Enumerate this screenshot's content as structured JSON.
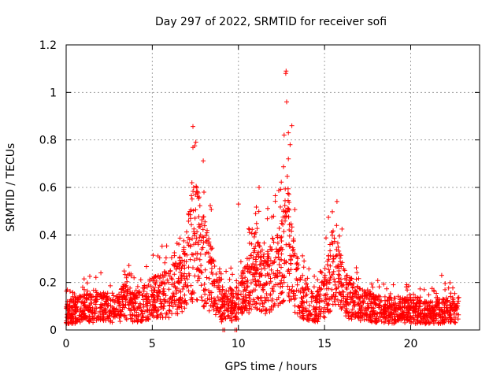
{
  "chart_data": {
    "type": "scatter",
    "title": "Day 297 of 2022, SRMTID for receiver sofi",
    "xlabel": "GPS time / hours",
    "ylabel": "SRMTID / TECUs",
    "xlim": [
      0,
      24
    ],
    "ylim": [
      0,
      1.2
    ],
    "xticks": [
      0,
      5,
      10,
      15,
      20
    ],
    "xtick_labels": [
      "0",
      "5",
      "10",
      "15",
      "20"
    ],
    "yticks": [
      0,
      0.2,
      0.4,
      0.6,
      0.8,
      1.0,
      1.2
    ],
    "ytick_labels": [
      "0",
      "0.2",
      "0.4",
      "0.6",
      "0.8",
      "1",
      "1.2"
    ],
    "grid": true,
    "marker": "+",
    "color": "#ff0000",
    "series": [
      {
        "name": "sofi",
        "profile": {
          "description_units": "hour -> typical SRMTID (TECU)",
          "hours": [
            0,
            1,
            2,
            3,
            3.5,
            4,
            5,
            6,
            6.8,
            7.2,
            7.5,
            8,
            8.5,
            9,
            10,
            10.5,
            11,
            11.5,
            12,
            12.5,
            12.8,
            13,
            13.3,
            13.8,
            14.5,
            15,
            15.5,
            16,
            16.5,
            17,
            18,
            19,
            20,
            21,
            22,
            22.8
          ],
          "values": [
            0.08,
            0.1,
            0.11,
            0.1,
            0.14,
            0.1,
            0.15,
            0.17,
            0.22,
            0.38,
            0.42,
            0.32,
            0.22,
            0.11,
            0.13,
            0.2,
            0.28,
            0.22,
            0.26,
            0.3,
            0.45,
            0.35,
            0.22,
            0.15,
            0.1,
            0.16,
            0.3,
            0.2,
            0.15,
            0.12,
            0.1,
            0.09,
            0.09,
            0.08,
            0.09,
            0.1
          ]
        },
        "peaks": [
          {
            "x": 7.3,
            "y": 0.62
          },
          {
            "x": 7.4,
            "y": 0.6
          },
          {
            "x": 7.5,
            "y": 0.57
          },
          {
            "x": 8.0,
            "y": 0.58
          },
          {
            "x": 10.0,
            "y": 0.53
          },
          {
            "x": 11.2,
            "y": 0.6
          },
          {
            "x": 11.0,
            "y": 0.49
          },
          {
            "x": 12.75,
            "y": 1.08
          },
          {
            "x": 12.77,
            "y": 1.09
          },
          {
            "x": 12.8,
            "y": 0.96
          },
          {
            "x": 12.9,
            "y": 0.83
          },
          {
            "x": 13.1,
            "y": 0.86
          },
          {
            "x": 13.0,
            "y": 0.78
          },
          {
            "x": 12.9,
            "y": 0.72
          },
          {
            "x": 15.7,
            "y": 0.44
          },
          {
            "x": 9.1,
            "y": 0.0
          },
          {
            "x": 9.2,
            "y": 0.0
          },
          {
            "x": 9.8,
            "y": 0.0
          },
          {
            "x": 9.9,
            "y": 0.0
          },
          {
            "x": 21.8,
            "y": 0.23
          }
        ],
        "count": 2600,
        "x_range": [
          0,
          22.8
        ]
      }
    ]
  }
}
